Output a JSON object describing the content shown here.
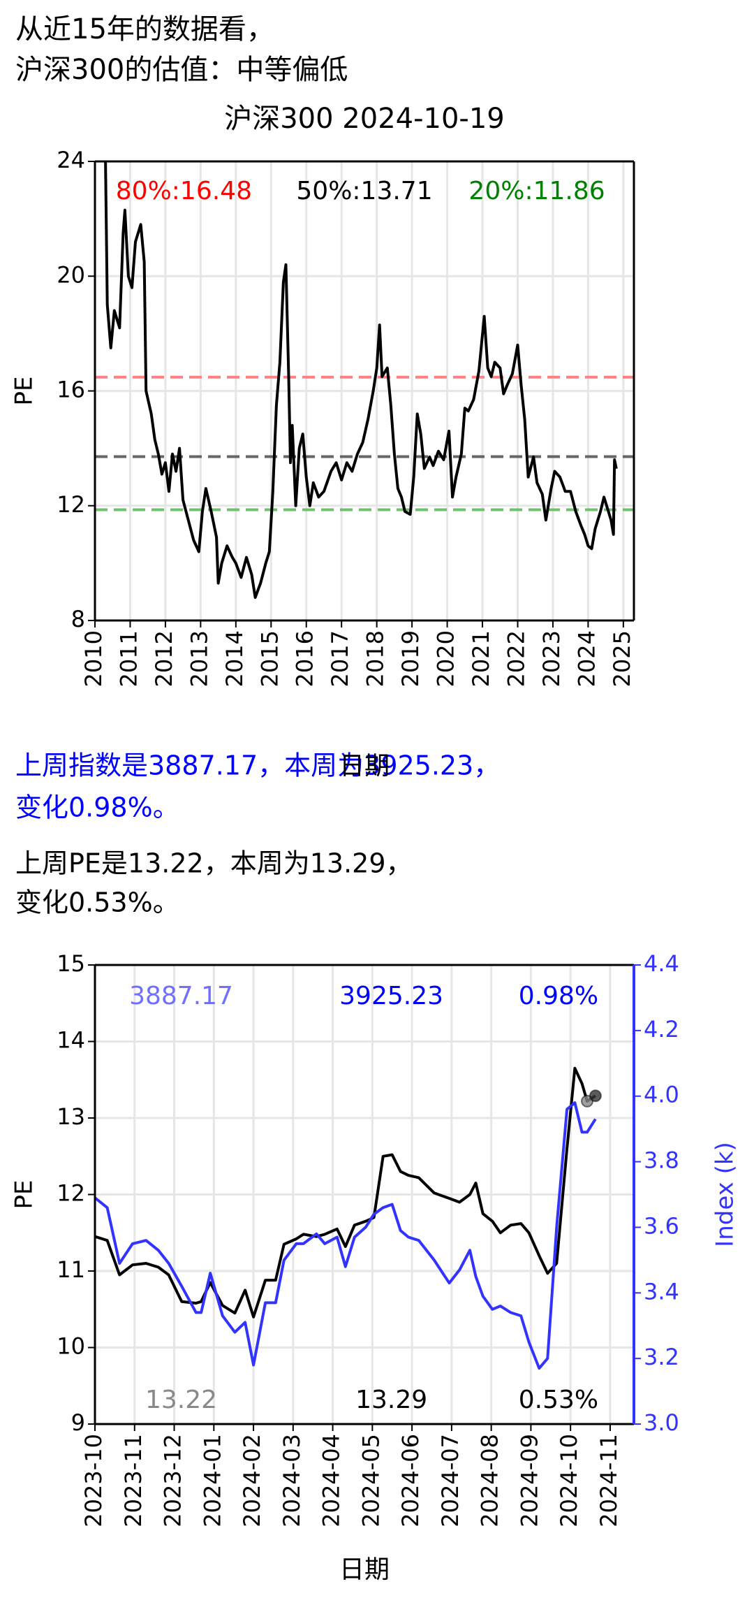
{
  "header": {
    "lines": [
      "从近15年的数据看，",
      "沪深300的估值：中等偏低"
    ]
  },
  "chart_data": [
    {
      "type": "line",
      "title": "沪深300 2024-10-19",
      "xlabel": "日期",
      "ylabel": "PE",
      "grid": true,
      "color": "#000000",
      "xlim": [
        2010,
        2025.3
      ],
      "xticks": [
        2010,
        2011,
        2012,
        2013,
        2014,
        2015,
        2016,
        2017,
        2018,
        2019,
        2020,
        2021,
        2022,
        2023,
        2024,
        2025
      ],
      "ylim": [
        8,
        24
      ],
      "yticks": [
        8,
        12,
        16,
        20,
        24
      ],
      "x": [
        2010.3,
        2010.35,
        2010.45,
        2010.55,
        2010.7,
        2010.8,
        2010.85,
        2010.95,
        2011.05,
        2011.15,
        2011.3,
        2011.4,
        2011.45,
        2011.6,
        2011.7,
        2011.8,
        2011.9,
        2012.0,
        2012.1,
        2012.2,
        2012.3,
        2012.4,
        2012.5,
        2012.65,
        2012.8,
        2012.95,
        2013.05,
        2013.15,
        2013.3,
        2013.45,
        2013.5,
        2013.6,
        2013.75,
        2013.9,
        2014.0,
        2014.15,
        2014.3,
        2014.45,
        2014.55,
        2014.7,
        2014.85,
        2014.95,
        2015.05,
        2015.15,
        2015.25,
        2015.35,
        2015.42,
        2015.5,
        2015.55,
        2015.6,
        2015.7,
        2015.8,
        2015.9,
        2016.0,
        2016.1,
        2016.2,
        2016.35,
        2016.5,
        2016.7,
        2016.85,
        2017.0,
        2017.15,
        2017.3,
        2017.45,
        2017.6,
        2017.75,
        2017.9,
        2018.0,
        2018.08,
        2018.15,
        2018.3,
        2018.4,
        2018.5,
        2018.6,
        2018.7,
        2018.8,
        2018.95,
        2019.05,
        2019.15,
        2019.25,
        2019.35,
        2019.5,
        2019.6,
        2019.75,
        2019.9,
        2020.05,
        2020.15,
        2020.25,
        2020.4,
        2020.5,
        2020.6,
        2020.75,
        2020.9,
        2021.05,
        2021.15,
        2021.25,
        2021.35,
        2021.5,
        2021.6,
        2021.7,
        2021.85,
        2022.0,
        2022.1,
        2022.2,
        2022.3,
        2022.45,
        2022.55,
        2022.7,
        2022.8,
        2022.95,
        2023.05,
        2023.2,
        2023.35,
        2023.5,
        2023.65,
        2023.8,
        2023.9,
        2024.0,
        2024.1,
        2024.2,
        2024.35,
        2024.45,
        2024.55,
        2024.65,
        2024.72,
        2024.75,
        2024.8
      ],
      "values": [
        24,
        19.0,
        17.5,
        18.8,
        18.2,
        21.5,
        22.3,
        20.0,
        19.6,
        21.2,
        21.8,
        20.5,
        16.0,
        15.2,
        14.3,
        13.8,
        13.1,
        13.5,
        12.5,
        13.8,
        13.2,
        14.0,
        12.2,
        11.5,
        10.8,
        10.4,
        11.8,
        12.6,
        11.8,
        10.9,
        9.3,
        10.0,
        10.6,
        10.2,
        10.0,
        9.5,
        10.2,
        9.6,
        8.8,
        9.3,
        10.0,
        10.4,
        12.5,
        15.5,
        17.0,
        19.8,
        20.4,
        16.5,
        13.5,
        14.8,
        12.0,
        14.0,
        14.5,
        13.0,
        12.0,
        12.8,
        12.3,
        12.5,
        13.2,
        13.5,
        12.9,
        13.5,
        13.2,
        13.8,
        14.2,
        15.0,
        16.0,
        16.8,
        18.3,
        16.5,
        16.8,
        15.5,
        13.8,
        12.6,
        12.3,
        11.8,
        11.7,
        13.0,
        15.2,
        14.5,
        13.3,
        13.7,
        13.4,
        13.9,
        13.6,
        14.6,
        12.3,
        13.0,
        13.8,
        15.4,
        15.3,
        15.7,
        16.7,
        18.6,
        16.8,
        16.5,
        17.0,
        16.8,
        15.9,
        16.2,
        16.6,
        17.6,
        16.2,
        15.0,
        13.0,
        13.7,
        12.8,
        12.4,
        11.5,
        12.6,
        13.2,
        13.0,
        12.5,
        12.5,
        11.8,
        11.3,
        11.0,
        10.6,
        10.5,
        11.2,
        11.8,
        12.3,
        11.9,
        11.5,
        11.0,
        13.6,
        13.29
      ],
      "hlines": [
        {
          "value": 16.48,
          "label": "80%:16.48",
          "color": "#ff8080"
        },
        {
          "value": 13.71,
          "label": "50%:13.71",
          "color": "#666666"
        },
        {
          "value": 11.86,
          "label": "20%:11.86",
          "color": "#70c070"
        }
      ],
      "annotations": [
        {
          "text": "80%:16.48",
          "color": "#ff0000"
        },
        {
          "text": "50%:13.71",
          "color": "#000000"
        },
        {
          "text": "20%:11.86",
          "color": "#008000"
        }
      ]
    },
    {
      "type": "line",
      "xlabel": "日期",
      "ylabel": "PE",
      "y2label": "Index (k)",
      "grid": true,
      "xlim": [
        0,
        13.6
      ],
      "xticks": [
        {
          "value": 0,
          "label": "2023-10"
        },
        {
          "value": 1,
          "label": "2023-11"
        },
        {
          "value": 2,
          "label": "2023-12"
        },
        {
          "value": 3,
          "label": "2024-01"
        },
        {
          "value": 4,
          "label": "2024-02"
        },
        {
          "value": 5,
          "label": "2024-03"
        },
        {
          "value": 6,
          "label": "2024-04"
        },
        {
          "value": 7,
          "label": "2024-05"
        },
        {
          "value": 8,
          "label": "2024-06"
        },
        {
          "value": 9,
          "label": "2024-07"
        },
        {
          "value": 10,
          "label": "2024-08"
        },
        {
          "value": 11,
          "label": "2024-09"
        },
        {
          "value": 12,
          "label": "2024-10"
        },
        {
          "value": 13,
          "label": "2024-11"
        }
      ],
      "ylim": [
        9,
        15
      ],
      "yticks": [
        9,
        10,
        11,
        12,
        13,
        14,
        15
      ],
      "y2lim": [
        3.0,
        4.4
      ],
      "y2ticks": [
        {
          "value": 3.0,
          "label": "3.0"
        },
        3.2,
        3.4,
        3.6,
        3.8,
        {
          "value": 4.0,
          "label": "4.0"
        },
        4.2,
        4.4
      ],
      "x": [
        0,
        0.31,
        0.62,
        0.95,
        1.29,
        1.6,
        1.86,
        2.19,
        2.55,
        2.68,
        2.91,
        3.22,
        3.53,
        3.79,
        4.0,
        4.3,
        4.56,
        4.77,
        5.08,
        5.26,
        5.59,
        5.8,
        6.11,
        6.32,
        6.55,
        6.83,
        7.04,
        7.27,
        7.5,
        7.71,
        7.91,
        8.17,
        8.56,
        8.94,
        9.2,
        9.46,
        9.61,
        9.79,
        10.03,
        10.23,
        10.49,
        10.75,
        10.95,
        11.21,
        11.42,
        11.65,
        11.91,
        12.11,
        12.29,
        12.42,
        12.63
      ],
      "series": [
        {
          "color": "#000000",
          "values": [
            11.45,
            11.4,
            10.95,
            11.08,
            11.1,
            11.05,
            10.95,
            10.6,
            10.58,
            10.6,
            10.85,
            10.55,
            10.45,
            10.75,
            10.4,
            10.88,
            10.88,
            11.35,
            11.42,
            11.48,
            11.45,
            11.48,
            11.55,
            11.32,
            11.6,
            11.65,
            11.7,
            12.5,
            12.52,
            12.3,
            12.25,
            12.22,
            12.02,
            11.95,
            11.9,
            12.0,
            12.15,
            11.75,
            11.65,
            11.5,
            11.6,
            11.62,
            11.5,
            11.2,
            10.97,
            11.1,
            12.6,
            13.65,
            13.45,
            13.22,
            13.29
          ]
        },
        {
          "color": "#3333ff",
          "axis": "y2",
          "values": [
            3.69,
            3.66,
            3.49,
            3.55,
            3.56,
            3.53,
            3.49,
            3.42,
            3.34,
            3.34,
            3.46,
            3.33,
            3.28,
            3.31,
            3.18,
            3.37,
            3.37,
            3.5,
            3.55,
            3.55,
            3.58,
            3.55,
            3.57,
            3.48,
            3.57,
            3.6,
            3.64,
            3.66,
            3.67,
            3.59,
            3.57,
            3.56,
            3.5,
            3.43,
            3.47,
            3.53,
            3.45,
            3.39,
            3.35,
            3.36,
            3.34,
            3.33,
            3.25,
            3.17,
            3.2,
            3.6,
            3.96,
            3.98,
            3.89,
            3.89,
            3.93
          ]
        }
      ],
      "markers": [
        {
          "x": 12.42,
          "y": 13.22,
          "color": "#888888"
        },
        {
          "x": 12.63,
          "y": 13.29,
          "color": "#333333"
        }
      ],
      "annotations": [
        {
          "text": "3887.17",
          "color": "#7070ff"
        },
        {
          "text": "3925.23",
          "color": "#0000ff"
        },
        {
          "text": "0.98%",
          "color": "#0000ff"
        },
        {
          "text": "13.22",
          "color": "#888888"
        },
        {
          "text": "13.29",
          "color": "#000000"
        },
        {
          "text": "0.53%",
          "color": "#000000"
        }
      ]
    }
  ],
  "paragraphs": [
    {
      "color": "#0000ff",
      "lines": [
        "上周指数是3887.17，本周为3925.23，",
        "变化0.98%。"
      ]
    },
    {
      "color": "#000000",
      "lines": [
        "上周PE是13.22，本周为13.29，",
        "变化0.53%。"
      ]
    }
  ]
}
